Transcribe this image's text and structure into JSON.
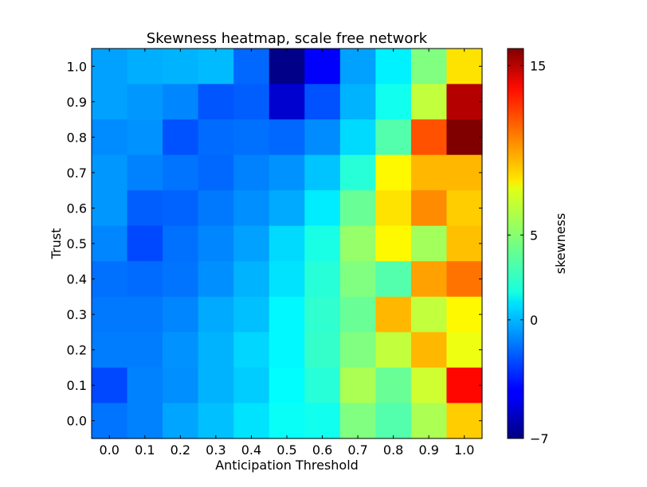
{
  "chart_data": {
    "type": "heatmap",
    "title": "Skewness heatmap, scale free network",
    "xlabel": "Anticipation Threshold",
    "ylabel": "Trust",
    "x_ticks": [
      "0.0",
      "0.1",
      "0.2",
      "0.3",
      "0.4",
      "0.5",
      "0.6",
      "0.7",
      "0.8",
      "0.9",
      "1.0"
    ],
    "y_ticks": [
      "0.0",
      "0.1",
      "0.2",
      "0.3",
      "0.4",
      "0.5",
      "0.6",
      "0.7",
      "0.8",
      "0.9",
      "1.0"
    ],
    "colorbar": {
      "label": "skewness",
      "min": -7,
      "max": 16,
      "tick_values": [
        -7,
        0,
        5,
        15
      ],
      "tick_labels": [
        "−7",
        "0",
        "5",
        "15"
      ]
    },
    "colormap": "jet",
    "rows_top_to_bottom": [
      [
        -0.5,
        -0.2,
        -0.1,
        0.1,
        -1.8,
        -6.8,
        -4.2,
        -0.5,
        1.3,
        4.5,
        8.0
      ],
      [
        -0.5,
        -0.7,
        -1.1,
        -2.2,
        -2.0,
        -5.2,
        -2.3,
        -0.1,
        2.0,
        6.0,
        14.8
      ],
      [
        -1.0,
        -0.8,
        -2.3,
        -1.7,
        -1.6,
        -1.8,
        -1.0,
        0.8,
        3.5,
        11.3,
        16.0
      ],
      [
        -0.7,
        -1.2,
        -1.5,
        -1.8,
        -1.2,
        -0.8,
        0.3,
        2.5,
        7.5,
        9.0,
        9.0
      ],
      [
        -0.7,
        -2.0,
        -1.9,
        -1.4,
        -0.9,
        -0.3,
        1.2,
        4.0,
        8.0,
        10.0,
        8.5
      ],
      [
        -1.1,
        -2.5,
        -1.6,
        -1.1,
        -0.5,
        0.8,
        2.2,
        5.0,
        7.5,
        5.3,
        8.8
      ],
      [
        -1.6,
        -1.7,
        -1.5,
        -0.9,
        -0.1,
        1.0,
        2.5,
        4.5,
        3.5,
        9.5,
        10.5
      ],
      [
        -1.4,
        -1.4,
        -1.1,
        -0.3,
        0.2,
        1.5,
        2.7,
        4.0,
        9.0,
        6.0,
        7.5
      ],
      [
        -1.3,
        -1.3,
        -0.8,
        -0.1,
        0.7,
        1.5,
        2.8,
        4.5,
        6.0,
        9.0,
        7.0
      ],
      [
        -2.5,
        -1.2,
        -0.9,
        -0.1,
        0.5,
        1.6,
        2.5,
        5.5,
        4.0,
        6.3,
        13.0
      ],
      [
        -1.5,
        -1.2,
        -0.4,
        0.2,
        1.0,
        1.8,
        2.0,
        4.5,
        3.5,
        5.5,
        8.5
      ]
    ]
  }
}
